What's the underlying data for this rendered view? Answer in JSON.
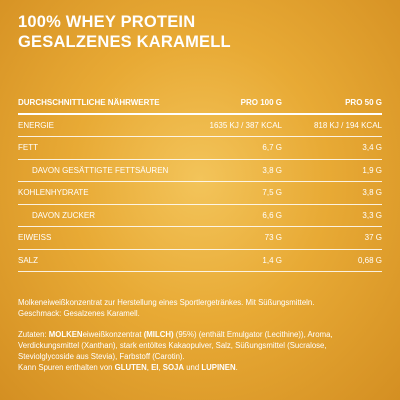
{
  "title": {
    "line1": "100% WHEY PROTEIN",
    "line2": "GESALZENES KARAMELL"
  },
  "nutrition": {
    "headers": [
      "DURCHSCHNITTLICHE NÄHRWERTE",
      "PRO 100 G",
      "PRO 50 G"
    ],
    "rows": [
      {
        "label": "ENERGIE",
        "per100": "1635 KJ / 387 KCAL",
        "per50": "818 KJ / 194 KCAL"
      },
      {
        "label": "FETT",
        "per100": "6,7 G",
        "per50": "3,4 G"
      },
      {
        "label": "DAVON GESÄTTIGTE FETTSÄUREN",
        "per100": "3,8 G",
        "per50": "1,9 G"
      },
      {
        "label": "KOHLENHYDRATE",
        "per100": "7,5 G",
        "per50": "3,8 G"
      },
      {
        "label": "DAVON ZUCKER",
        "per100": "6,6 G",
        "per50": "3,3 G"
      },
      {
        "label": "EIWEISS",
        "per100": "73 G",
        "per50": "37 G"
      },
      {
        "label": "SALZ",
        "per100": "1,4 G",
        "per50": "0,68 G"
      }
    ]
  },
  "description": {
    "line1": "Molkeneiweißkonzentrat zur Herstellung eines Sportlergetränkes. Mit Süßungsmitteln.",
    "line2": "Geschmack: Gesalzenes Karamell."
  },
  "ingredients": {
    "prefix": "Zutaten: ",
    "bold1": "MOLKEN",
    "text1": "eiweißkonzentrat ",
    "bold2": "(MILCH)",
    "text2": " (95%) (enthält Emulgator (Lecithine)), Aroma, Verdickungsmittel (Xanthan), stark entöltes Kakaopulver, Salz, Süßungsmittel (Sucralose, Steviolglycoside aus Stevia), Farbstoff (Carotin).",
    "allergen_prefix": "Kann Spuren enthalten von ",
    "allergen1": "GLUTEN",
    "sep1": ", ",
    "allergen2": "EI",
    "sep2": ", ",
    "allergen3": "SOJA",
    "sep3": " und ",
    "allergen4": "LUPINEN",
    "end": "."
  }
}
